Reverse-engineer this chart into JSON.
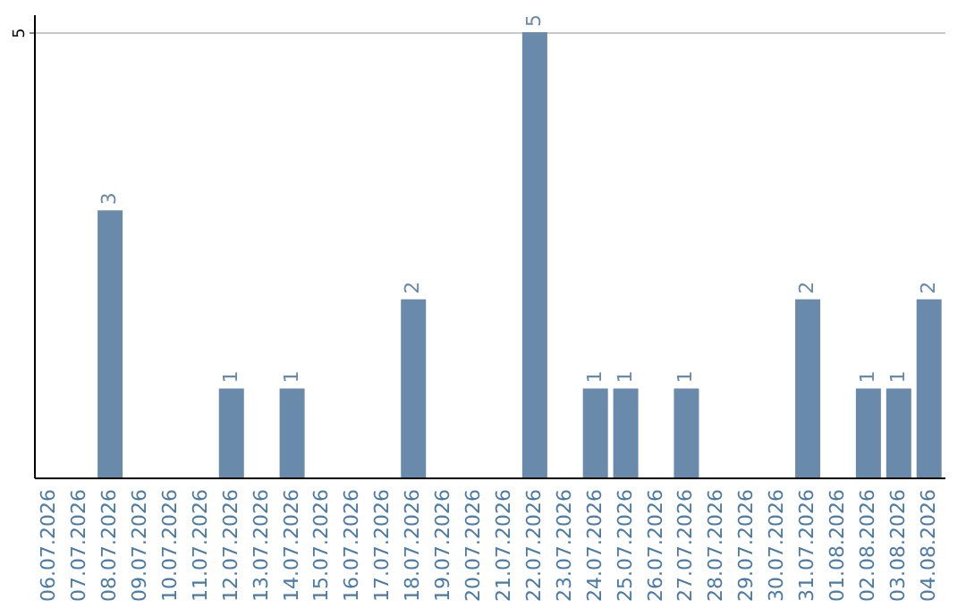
{
  "chart_data": {
    "type": "bar",
    "categories": [
      "06.07.2026",
      "07.07.2026",
      "08.07.2026",
      "09.07.2026",
      "10.07.2026",
      "11.07.2026",
      "12.07.2026",
      "13.07.2026",
      "14.07.2026",
      "15.07.2026",
      "16.07.2026",
      "17.07.2026",
      "18.07.2026",
      "19.07.2026",
      "20.07.2026",
      "21.07.2026",
      "22.07.2026",
      "23.07.2026",
      "24.07.2026",
      "25.07.2026",
      "26.07.2026",
      "27.07.2026",
      "28.07.2026",
      "29.07.2026",
      "30.07.2026",
      "31.07.2026",
      "01.08.2026",
      "02.08.2026",
      "03.08.2026",
      "04.08.2026"
    ],
    "values": [
      0,
      0,
      3,
      0,
      0,
      0,
      1,
      0,
      1,
      0,
      0,
      0,
      2,
      0,
      0,
      0,
      5,
      0,
      1,
      1,
      0,
      1,
      0,
      0,
      0,
      2,
      0,
      1,
      1,
      2
    ],
    "value_labels": [
      null,
      null,
      "3",
      null,
      null,
      null,
      "1",
      null,
      "1",
      null,
      null,
      null,
      "2",
      null,
      null,
      null,
      "5",
      null,
      "1",
      "1",
      null,
      "1",
      null,
      null,
      null,
      "2",
      null,
      "1",
      "1",
      "2"
    ],
    "color": "#6a8aab",
    "ylim": [
      0,
      5.2
    ],
    "yticks": [
      5
    ],
    "grid": "y"
  }
}
